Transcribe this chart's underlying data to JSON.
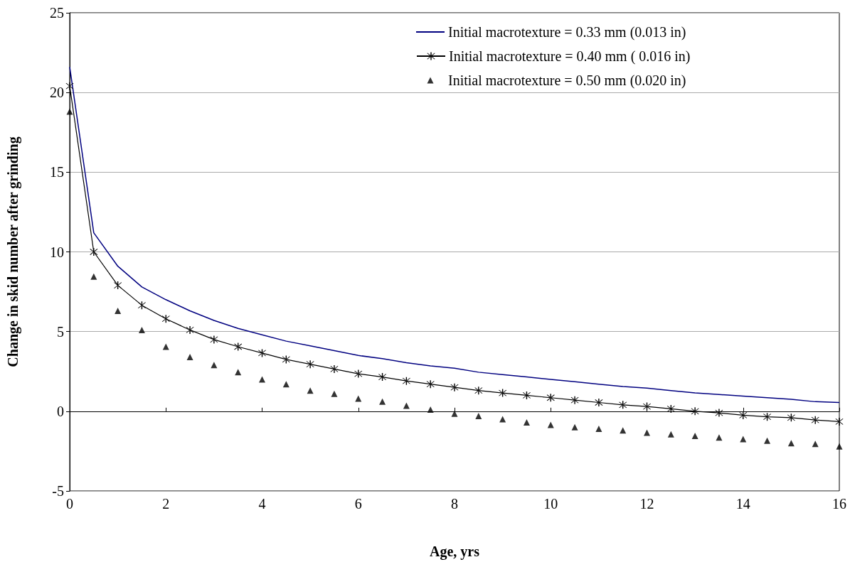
{
  "chart_data": {
    "type": "line",
    "xlabel": "Age, yrs",
    "ylabel": "Change in skid number after grinding",
    "x": [
      0,
      0.5,
      1,
      1.5,
      2,
      2.5,
      3,
      3.5,
      4,
      4.5,
      5,
      5.5,
      6,
      6.5,
      7,
      7.5,
      8,
      8.5,
      9,
      9.5,
      10,
      10.5,
      11,
      11.5,
      12,
      12.5,
      13,
      13.5,
      14,
      14.5,
      15,
      15.5,
      16
    ],
    "series": [
      {
        "name": "Initial macrotexture = 0.33 mm (0.013 in)",
        "color": "#000080",
        "marker": "none",
        "values": [
          21.6,
          11.2,
          9.1,
          7.8,
          7.0,
          6.3,
          5.7,
          5.2,
          4.8,
          4.4,
          4.1,
          3.8,
          3.5,
          3.3,
          3.05,
          2.85,
          2.7,
          2.45,
          2.3,
          2.15,
          2.0,
          1.85,
          1.7,
          1.55,
          1.45,
          1.3,
          1.15,
          1.05,
          0.95,
          0.85,
          0.75,
          0.6,
          0.55
        ]
      },
      {
        "name": "Initial macrotexture = 0.40 mm ( 0.016 in)",
        "color": "#000000",
        "marker": "cross",
        "values": [
          20.4,
          10.0,
          7.9,
          6.65,
          5.8,
          5.1,
          4.5,
          4.05,
          3.65,
          3.25,
          2.95,
          2.65,
          2.35,
          2.15,
          1.9,
          1.7,
          1.5,
          1.3,
          1.15,
          1.0,
          0.85,
          0.7,
          0.55,
          0.4,
          0.3,
          0.15,
          0.0,
          -0.1,
          -0.25,
          -0.35,
          -0.4,
          -0.55,
          -0.65
        ]
      },
      {
        "name": "Initial macrotexture = 0.50 mm (0.020 in)",
        "type": "scatter",
        "color": "#000000",
        "marker": "triangle",
        "values": [
          18.8,
          8.45,
          6.3,
          5.1,
          4.05,
          3.4,
          2.9,
          2.45,
          2.0,
          1.7,
          1.3,
          1.1,
          0.8,
          0.6,
          0.35,
          0.1,
          -0.15,
          -0.3,
          -0.5,
          -0.7,
          -0.85,
          -1.0,
          -1.1,
          -1.2,
          -1.35,
          -1.45,
          -1.55,
          -1.65,
          -1.75,
          -1.85,
          -2.0,
          -2.05,
          -2.2
        ]
      }
    ],
    "xlim": [
      0,
      16
    ],
    "xticks": [
      0,
      2,
      4,
      6,
      8,
      10,
      12,
      14,
      16
    ],
    "ylim": [
      -5,
      25
    ],
    "yticks": [
      -5,
      0,
      5,
      10,
      15,
      20,
      25
    ],
    "grid": "y",
    "legend": "top right"
  }
}
